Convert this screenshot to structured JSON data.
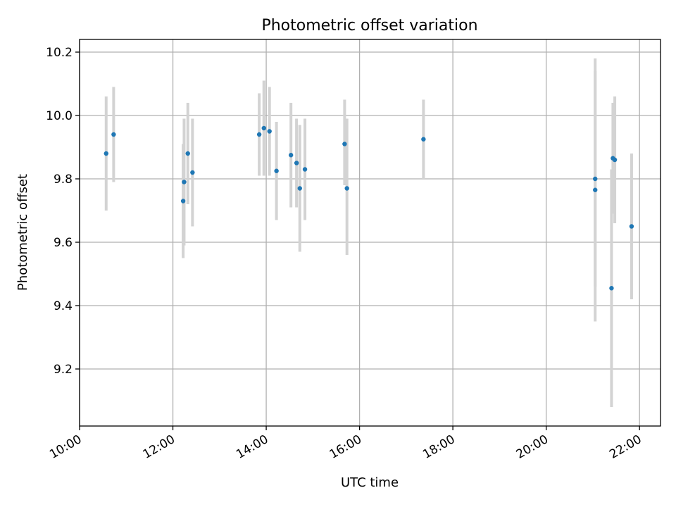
{
  "chart_data": {
    "type": "scatter",
    "title": "Photometric offset variation",
    "xlabel": "UTC time",
    "ylabel": "Photometric offset",
    "x_unit": "hours UTC",
    "xlim": [
      10.0,
      22.45
    ],
    "ylim": [
      9.02,
      10.24
    ],
    "x_ticks": [
      10,
      12,
      14,
      16,
      18,
      20,
      22
    ],
    "x_tick_labels": [
      "10:00",
      "12:00",
      "14:00",
      "16:00",
      "18:00",
      "20:00",
      "22:00"
    ],
    "y_ticks": [
      9.2,
      9.4,
      9.6,
      9.8,
      10.0,
      10.2
    ],
    "y_tick_labels": [
      "9.2",
      "9.4",
      "9.6",
      "9.8",
      "10.0",
      "10.2"
    ],
    "grid": true,
    "colors": {
      "point": "#1f77b4",
      "errorbar": "#d3d3d3"
    },
    "points": [
      {
        "x": 10.57,
        "y": 9.88,
        "lo": 9.7,
        "hi": 10.06
      },
      {
        "x": 10.73,
        "y": 9.94,
        "lo": 9.79,
        "hi": 10.09
      },
      {
        "x": 12.22,
        "y": 9.73,
        "lo": 9.55,
        "hi": 9.91
      },
      {
        "x": 12.24,
        "y": 9.79,
        "lo": 9.59,
        "hi": 9.99
      },
      {
        "x": 12.32,
        "y": 9.88,
        "lo": 9.72,
        "hi": 10.04
      },
      {
        "x": 12.42,
        "y": 9.82,
        "lo": 9.65,
        "hi": 9.99
      },
      {
        "x": 13.85,
        "y": 9.94,
        "lo": 9.81,
        "hi": 10.07
      },
      {
        "x": 13.95,
        "y": 9.96,
        "lo": 9.81,
        "hi": 10.11
      },
      {
        "x": 14.07,
        "y": 9.95,
        "lo": 9.81,
        "hi": 10.09
      },
      {
        "x": 14.22,
        "y": 9.825,
        "lo": 9.67,
        "hi": 9.98
      },
      {
        "x": 14.53,
        "y": 9.875,
        "lo": 9.71,
        "hi": 10.04
      },
      {
        "x": 14.65,
        "y": 9.85,
        "lo": 9.71,
        "hi": 9.99
      },
      {
        "x": 14.72,
        "y": 9.77,
        "lo": 9.57,
        "hi": 9.97
      },
      {
        "x": 14.83,
        "y": 9.83,
        "lo": 9.67,
        "hi": 9.99
      },
      {
        "x": 15.68,
        "y": 9.91,
        "lo": 9.78,
        "hi": 10.05
      },
      {
        "x": 15.73,
        "y": 9.77,
        "lo": 9.56,
        "hi": 9.99
      },
      {
        "x": 17.37,
        "y": 9.925,
        "lo": 9.8,
        "hi": 10.05
      },
      {
        "x": 21.05,
        "y": 9.8,
        "lo": 9.46,
        "hi": 10.14
      },
      {
        "x": 21.05,
        "y": 9.765,
        "lo": 9.35,
        "hi": 10.18
      },
      {
        "x": 21.4,
        "y": 9.455,
        "lo": 9.08,
        "hi": 9.83
      },
      {
        "x": 21.43,
        "y": 9.865,
        "lo": 9.69,
        "hi": 10.04
      },
      {
        "x": 21.47,
        "y": 9.86,
        "lo": 9.66,
        "hi": 10.06
      },
      {
        "x": 21.83,
        "y": 9.65,
        "lo": 9.42,
        "hi": 9.88
      }
    ]
  }
}
